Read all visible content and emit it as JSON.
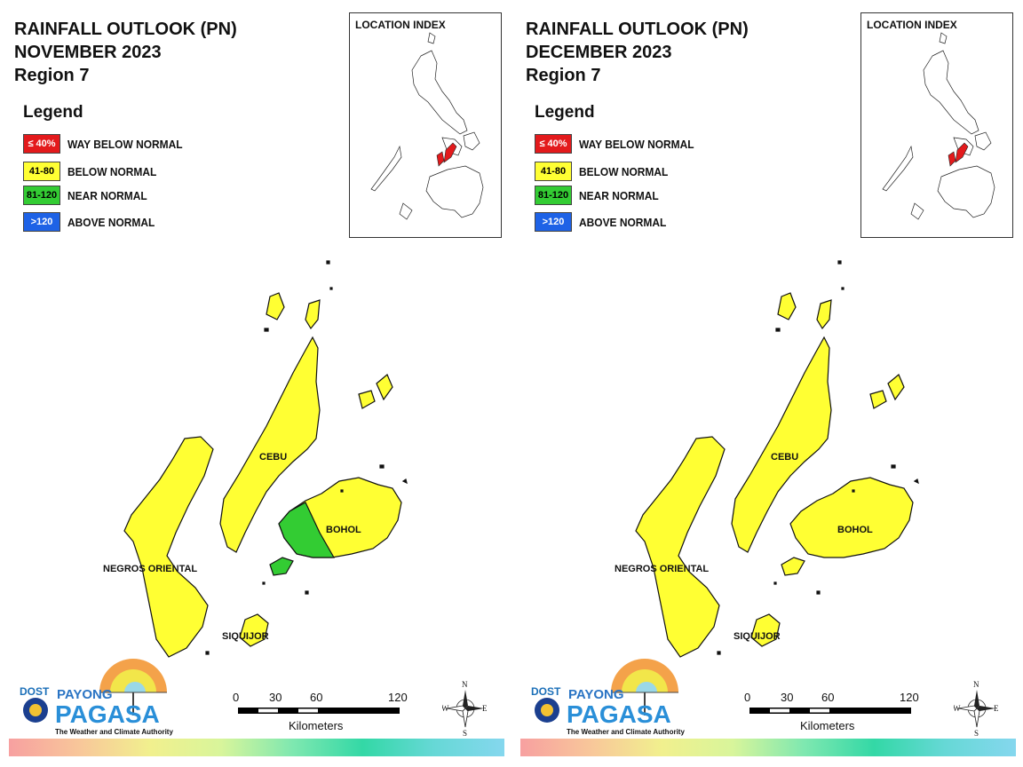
{
  "panels": [
    {
      "title_line1": "RAINFALL OUTLOOK (PN)",
      "title_line2": "NOVEMBER 2023",
      "title_line3": "Region 7",
      "legend_title": "Legend",
      "legend": [
        {
          "range": "≤ 40%",
          "label": "WAY BELOW NORMAL",
          "color": "#e31a1c",
          "text_color": "#ffffff"
        },
        {
          "range": "41-80",
          "label": "BELOW NORMAL",
          "color": "#ffff33",
          "text_color": "#000000"
        },
        {
          "range": "81-120",
          "label": "NEAR NORMAL",
          "color": "#33cc33",
          "text_color": "#000000"
        },
        {
          "range": ">120",
          "label": "ABOVE NORMAL",
          "color": "#1e62e6",
          "text_color": "#ffffff"
        }
      ],
      "location_index_title": "LOCATION INDEX",
      "region_labels": {
        "cebu": "CEBU",
        "bohol": "BOHOL",
        "negros": "NEGROS ORIENTAL",
        "siquijor": "SIQUIJOR"
      },
      "region_colors": {
        "cebu": "#ffff33",
        "negros": "#ffff33",
        "siquijor": "#ffff33",
        "bohol": "#ffff33",
        "bohol_west": "#33cc33"
      },
      "scale": {
        "ticks": [
          "0",
          "30",
          "60",
          "120"
        ],
        "unit": "Kilometers"
      },
      "compass": {
        "n": "N",
        "s": "S",
        "e": "E",
        "w": "W"
      },
      "logo": {
        "dost": "DOST",
        "payong": "PAYONG",
        "pagasa": "PAGASA",
        "tagline": "The Weather and Climate Authority"
      }
    },
    {
      "title_line1": "RAINFALL OUTLOOK (PN)",
      "title_line2": "DECEMBER 2023",
      "title_line3": "Region 7",
      "legend_title": "Legend",
      "legend": [
        {
          "range": "≤ 40%",
          "label": "WAY BELOW NORMAL",
          "color": "#e31a1c",
          "text_color": "#ffffff"
        },
        {
          "range": "41-80",
          "label": "BELOW NORMAL",
          "color": "#ffff33",
          "text_color": "#000000"
        },
        {
          "range": "81-120",
          "label": "NEAR NORMAL",
          "color": "#33cc33",
          "text_color": "#000000"
        },
        {
          "range": ">120",
          "label": "ABOVE NORMAL",
          "color": "#1e62e6",
          "text_color": "#ffffff"
        }
      ],
      "location_index_title": "LOCATION INDEX",
      "region_labels": {
        "cebu": "CEBU",
        "bohol": "BOHOL",
        "negros": "NEGROS ORIENTAL",
        "siquijor": "SIQUIJOR"
      },
      "region_colors": {
        "cebu": "#ffff33",
        "negros": "#ffff33",
        "siquijor": "#ffff33",
        "bohol": "#ffff33",
        "bohol_west": "#ffff33"
      },
      "scale": {
        "ticks": [
          "0",
          "30",
          "60",
          "120"
        ],
        "unit": "Kilometers"
      },
      "compass": {
        "n": "N",
        "s": "S",
        "e": "E",
        "w": "W"
      },
      "logo": {
        "dost": "DOST",
        "payong": "PAYONG",
        "pagasa": "PAGASA",
        "tagline": "The Weather and Climate Authority"
      }
    }
  ]
}
